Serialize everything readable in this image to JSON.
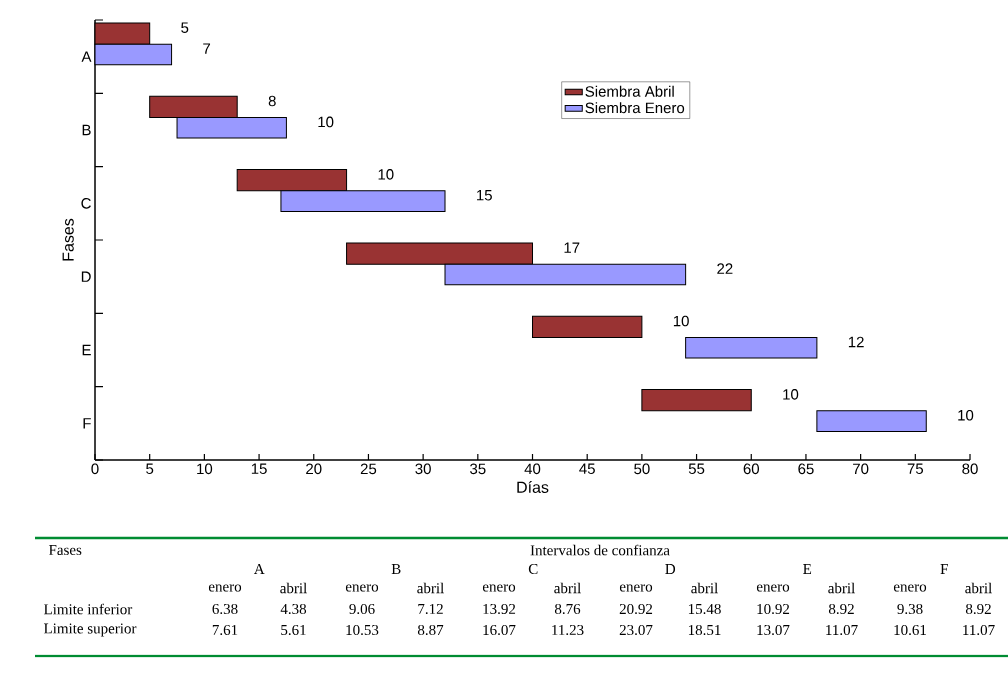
{
  "chart_data": [
    {
      "type": "bar",
      "orientation": "horizontal",
      "xlabel": "Días",
      "ylabel": "Fases",
      "categories": [
        "A",
        "B",
        "C",
        "D",
        "E",
        "F"
      ],
      "series": [
        {
          "name": "Siembra Abril",
          "color": "#993333",
          "values": [
            5,
            8,
            10,
            17,
            10,
            10
          ],
          "base": [
            0,
            5,
            13,
            23,
            40,
            50
          ]
        },
        {
          "name": "Siembra Enero",
          "color": "#9999ff",
          "values": [
            7,
            10,
            15,
            22,
            12,
            10
          ],
          "base": [
            0,
            7.5,
            17,
            32,
            54,
            66
          ]
        }
      ],
      "xlim": [
        0,
        80
      ],
      "xticks": [
        0,
        5,
        10,
        15,
        20,
        25,
        30,
        35,
        40,
        45,
        50,
        55,
        60,
        65,
        70,
        75,
        80
      ],
      "legend": "top right",
      "data_labels": true
    },
    {
      "type": "heatmap",
      "title": "Intervalos de confianza",
      "data_labels": true,
      "annotations": [
        "Fases",
        "A",
        "B",
        "C",
        "D",
        "E",
        "F"
      ],
      "categories": [
        "enero",
        "abril",
        "enero",
        "abril",
        "enero",
        "abril",
        "enero",
        "abril",
        "enero",
        "abril",
        "enero",
        "abril"
      ],
      "y_categories": [
        "Limite inferior",
        "Limite superior"
      ],
      "cells": [
        [
          6.38,
          4.38,
          9.06,
          7.12,
          13.92,
          8.76,
          20.92,
          15.48,
          10.92,
          8.92,
          9.38,
          8.92
        ],
        [
          7.61,
          5.61,
          10.53,
          8.87,
          16.07,
          11.23,
          23.07,
          18.51,
          13.07,
          11.07,
          10.61,
          11.07
        ]
      ]
    }
  ]
}
